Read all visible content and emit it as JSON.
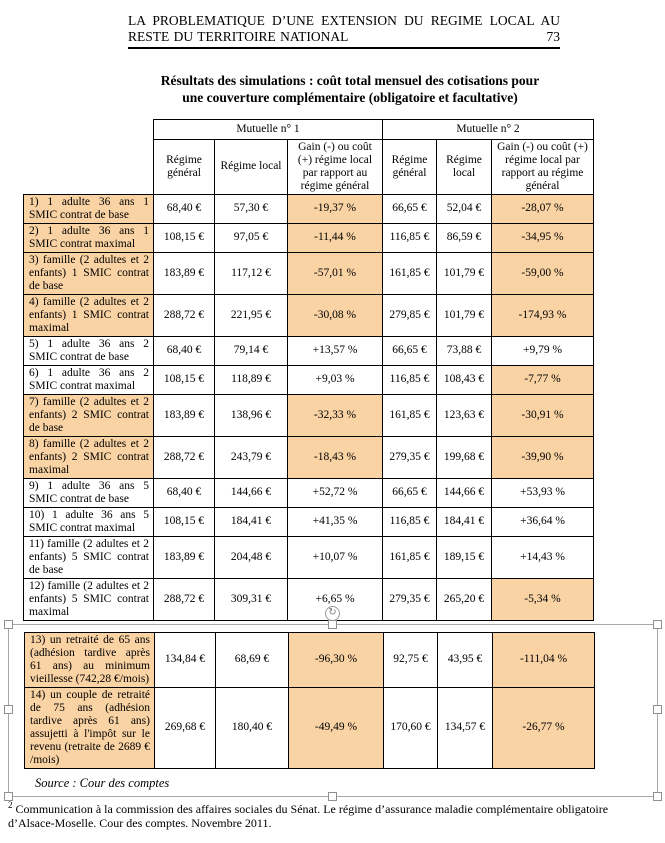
{
  "header": {
    "line1": "LA  PROBLEMATIQUE  D’UNE  EXTENSION  DU  REGIME  LOCAL  AU",
    "line2": "RESTE DU TERRITOIRE NATIONAL",
    "page_number": "73"
  },
  "title": {
    "line1": "Résultats des simulations : coût total mensuel des cotisations pour",
    "line2": "une couverture complémentaire (obligatoire et facultative)"
  },
  "table": {
    "group_headers": [
      "Mutuelle n° 1",
      "Mutuelle n° 2"
    ],
    "col_headers": [
      "Régime général",
      "Régime local",
      "Gain (-) ou coût (+) régime local par rapport au régime général",
      "Régime général",
      "Régime local",
      "Gain (-) ou coût (+) régime local par rapport au régime général"
    ],
    "rows": [
      {
        "label": "1) 1 adulte 36 ans 1 SMIC contrat de base",
        "values": [
          "68,40 €",
          "57,30 €",
          "-19,37 %",
          "66,65 €",
          "52,04 €",
          "-28,07 %"
        ],
        "hl": [
          true,
          true,
          true
        ]
      },
      {
        "label": "2) 1 adulte 36 ans 1 SMIC contrat maximal",
        "values": [
          "108,15 €",
          "97,05 €",
          "-11,44 %",
          "116,85 €",
          "86,59 €",
          "-34,95 %"
        ],
        "hl": [
          true,
          true,
          true
        ]
      },
      {
        "label": "3) famille (2 adultes et 2 enfants) 1 SMIC contrat de base",
        "values": [
          "183,89 €",
          "117,12 €",
          "-57,01 %",
          "161,85 €",
          "101,79 €",
          "-59,00 %"
        ],
        "hl": [
          true,
          true,
          true
        ]
      },
      {
        "label": "4) famille (2 adultes et 2 enfants) 1 SMIC contrat maximal",
        "values": [
          "288,72 €",
          "221,95 €",
          "-30,08 %",
          "279,85 €",
          "101,79 €",
          "-174,93 %"
        ],
        "hl": [
          true,
          true,
          true
        ]
      },
      {
        "label": "5) 1 adulte 36 ans 2 SMIC contrat de base",
        "values": [
          "68,40 €",
          "79,14 €",
          "+13,57 %",
          "66,65 €",
          "73,88 €",
          "+9,79 %"
        ],
        "hl": [
          false,
          false,
          false
        ]
      },
      {
        "label": "6) 1 adulte 36 ans 2 SMIC contrat maximal",
        "values": [
          "108,15 €",
          "118,89 €",
          "+9,03 %",
          "116,85 €",
          "108,43 €",
          "-7,77 %"
        ],
        "hl": [
          false,
          false,
          true
        ]
      },
      {
        "label": "7) famille (2 adultes et 2 enfants) 2 SMIC contrat de base",
        "values": [
          "183,89 €",
          "138,96 €",
          "-32,33 %",
          "161,85 €",
          "123,63 €",
          "-30,91 %"
        ],
        "hl": [
          true,
          true,
          true
        ]
      },
      {
        "label": "8) famille (2 adultes et 2 enfants) 2 SMIC contrat maximal",
        "values": [
          "288,72 €",
          "243,79 €",
          "-18,43 %",
          "279,35 €",
          "199,68 €",
          "-39,90 %"
        ],
        "hl": [
          true,
          true,
          true
        ]
      },
      {
        "label": "9) 1 adulte 36 ans 5 SMIC contrat de base",
        "values": [
          "68,40 €",
          "144,66 €",
          "+52,72 %",
          "66,65 €",
          "144,66 €",
          "+53,93 %"
        ],
        "hl": [
          false,
          false,
          false
        ]
      },
      {
        "label": "10) 1 adulte 36 ans 5 SMIC contrat maximal",
        "values": [
          "108,15 €",
          "184,41 €",
          "+41,35 %",
          "116,85 €",
          "184,41 €",
          "+36,64 %"
        ],
        "hl": [
          false,
          false,
          false
        ]
      },
      {
        "label": "11) famille (2 adultes et 2 enfants) 5 SMIC contrat de base",
        "values": [
          "183,89 €",
          "204,48 €",
          "+10,07 %",
          "161,85 €",
          "189,15 €",
          "+14,43 %"
        ],
        "hl": [
          false,
          false,
          false
        ]
      },
      {
        "label": "12) famille (2 adultes et 2 enfants) 5 SMIC contrat maximal",
        "values": [
          "288,72 €",
          "309,31 €",
          "+6,65 %",
          "279,35 €",
          "265,20 €",
          "-5,34 %"
        ],
        "hl": [
          false,
          false,
          true
        ]
      }
    ],
    "retiree_rows": [
      {
        "label": "13) un retraité de 65 ans (adhésion tardive après 61 ans) au minimum vieillesse (742,28 €/mois)",
        "values": [
          "134,84 €",
          "68,69 €",
          "-96,30 %",
          "92,75 €",
          "43,95 €",
          "-111,04 %"
        ],
        "hl": [
          true,
          true,
          true
        ]
      },
      {
        "label": "14) un couple de retraité de 75 ans (adhésion tardive après 61 ans) assujetti à l'impôt sur le revenu (retraite de 2689 € /mois)",
        "values": [
          "269,68 €",
          "180,40 €",
          "-49,49 %",
          "170,60 €",
          "134,57 €",
          "-26,77 %"
        ],
        "hl": [
          true,
          true,
          true
        ]
      }
    ]
  },
  "source": "Source : Cour des comptes",
  "footnote": {
    "marker": "2",
    "text": "Communication à la commission des affaires sociales du Sénat. Le régime d’assurance maladie complémentaire obligatoire d’Alsace-Moselle. Cour des comptes. Novembre 2011."
  },
  "icons": {
    "rotate": "↻"
  },
  "colors": {
    "highlight": "#fad3a4",
    "frame_border": "#a8a8a8"
  }
}
